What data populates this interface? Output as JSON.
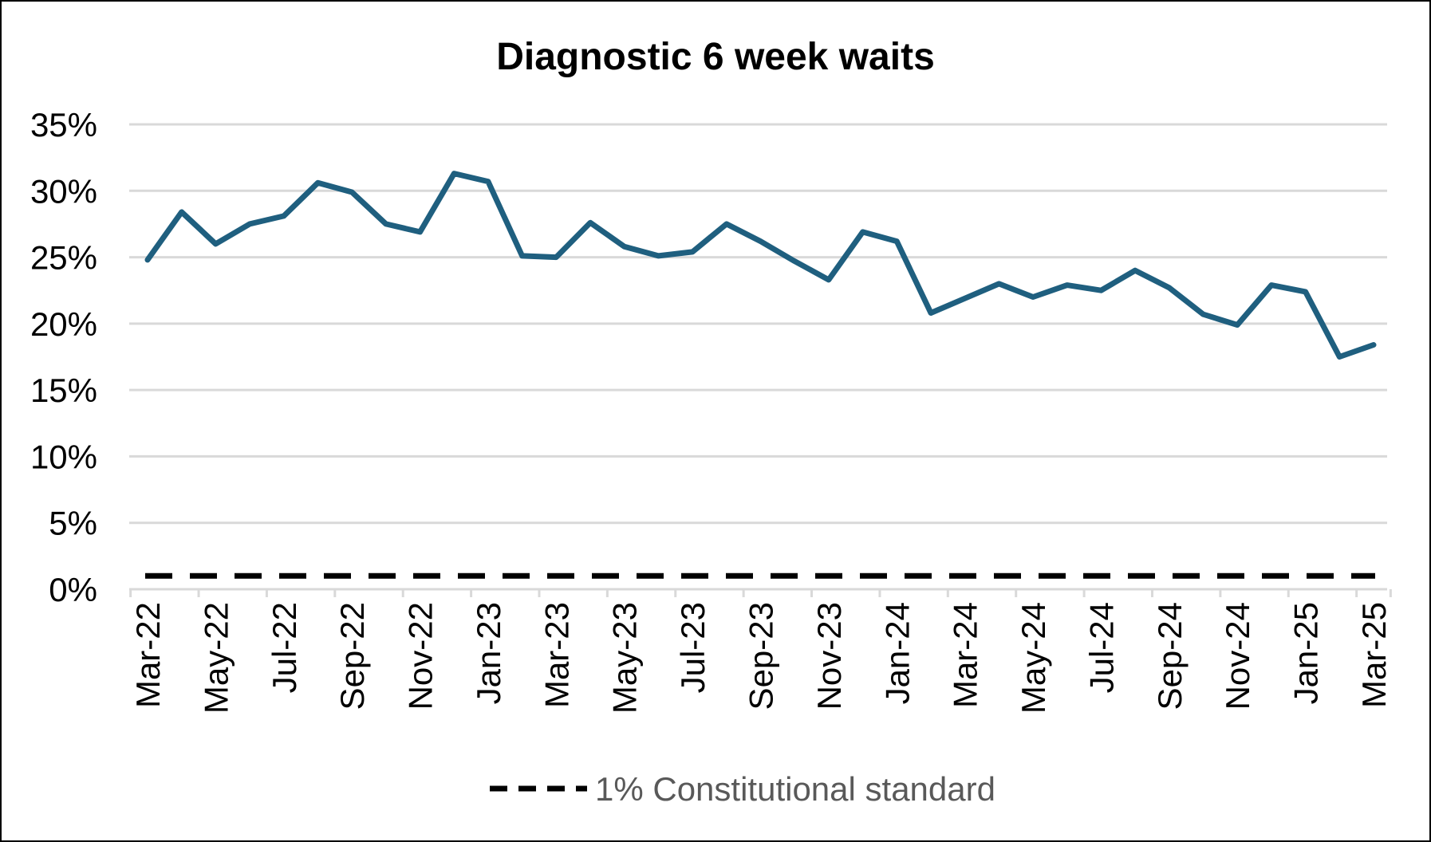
{
  "chart_data": {
    "type": "line",
    "title": "Diagnostic 6 week waits",
    "xlabel": "",
    "ylabel": "",
    "ylim": [
      0,
      35
    ],
    "y_ticks": [
      "0%",
      "5%",
      "10%",
      "15%",
      "20%",
      "25%",
      "30%",
      "35%"
    ],
    "y_tick_values": [
      0,
      5,
      10,
      15,
      20,
      25,
      30,
      35
    ],
    "x_tick_labels": [
      "Mar-22",
      "May-22",
      "Jul-22",
      "Sep-22",
      "Nov-22",
      "Jan-23",
      "Mar-23",
      "May-23",
      "Jul-23",
      "Sep-23",
      "Nov-23",
      "Jan-24",
      "Mar-24",
      "May-24",
      "Jul-24",
      "Sep-24",
      "Nov-24",
      "Jan-25",
      "Mar-25"
    ],
    "categories": [
      "Mar-22",
      "Apr-22",
      "May-22",
      "Jun-22",
      "Jul-22",
      "Aug-22",
      "Sep-22",
      "Oct-22",
      "Nov-22",
      "Dec-22",
      "Jan-23",
      "Feb-23",
      "Mar-23",
      "Apr-23",
      "May-23",
      "Jun-23",
      "Jul-23",
      "Aug-23",
      "Sep-23",
      "Oct-23",
      "Nov-23",
      "Dec-23",
      "Jan-24",
      "Feb-24",
      "Mar-24",
      "Apr-24",
      "May-24",
      "Jun-24",
      "Jul-24",
      "Aug-24",
      "Sep-24",
      "Oct-24",
      "Nov-24",
      "Dec-24",
      "Jan-25",
      "Feb-25",
      "Mar-25"
    ],
    "series": [
      {
        "color": "#1f5f7f",
        "values": [
          24.8,
          28.4,
          26.0,
          27.5,
          28.1,
          30.6,
          29.9,
          27.5,
          26.9,
          31.3,
          30.7,
          25.1,
          25.0,
          27.6,
          25.8,
          25.1,
          25.4,
          27.5,
          26.2,
          24.7,
          23.3,
          26.9,
          26.2,
          20.8,
          21.9,
          23.0,
          22.0,
          22.9,
          22.5,
          24.0,
          22.7,
          20.7,
          19.9,
          22.9,
          22.4,
          17.5,
          18.4
        ]
      },
      {
        "name": "1% Constitutional standard",
        "color": "#000000",
        "dashed": true,
        "values": [
          1,
          1,
          1,
          1,
          1,
          1,
          1,
          1,
          1,
          1,
          1,
          1,
          1,
          1,
          1,
          1,
          1,
          1,
          1,
          1,
          1,
          1,
          1,
          1,
          1,
          1,
          1,
          1,
          1,
          1,
          1,
          1,
          1,
          1,
          1,
          1,
          1
        ]
      }
    ],
    "grid": true,
    "legend": "bottom"
  }
}
